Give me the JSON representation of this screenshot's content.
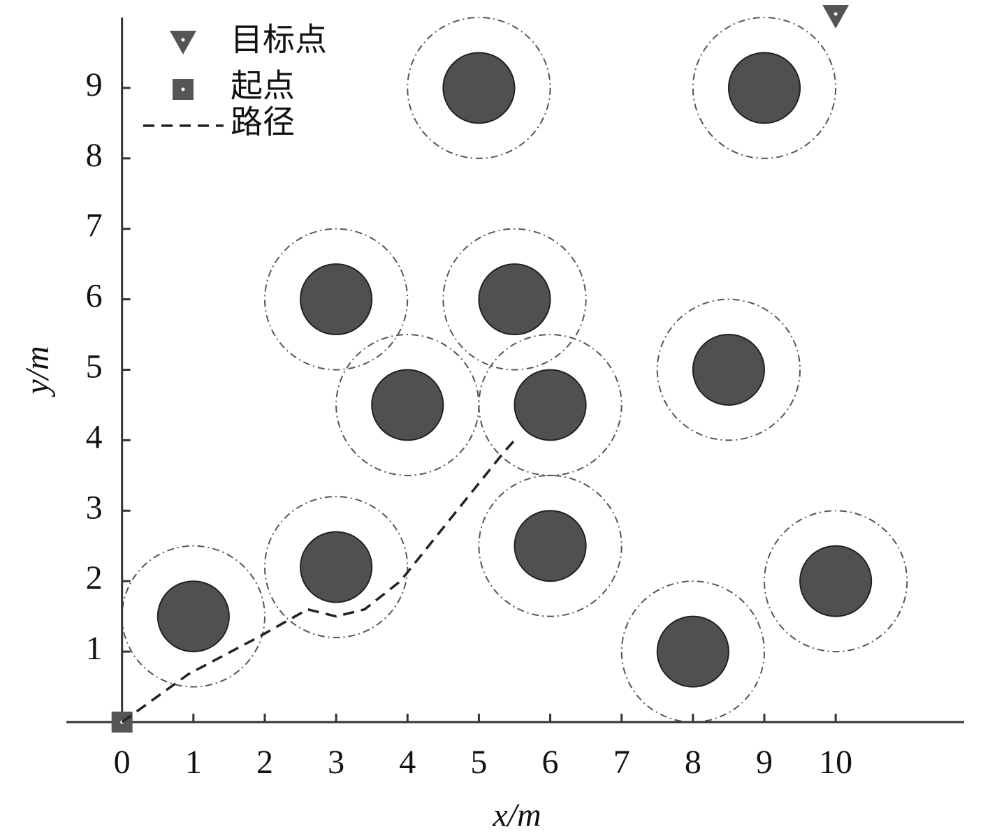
{
  "chart_data": {
    "type": "obstacle-map",
    "xlabel": "x/m",
    "ylabel": "y/m",
    "xlim": [
      -0.78,
      11.8
    ],
    "ylim": [
      0,
      10
    ],
    "xticks": [
      0,
      1,
      2,
      3,
      4,
      5,
      6,
      7,
      8,
      9,
      10
    ],
    "yticks": [
      1,
      2,
      3,
      4,
      5,
      6,
      7,
      8,
      9
    ],
    "obstacles": {
      "x": [
        1,
        3,
        3,
        4,
        5,
        5.5,
        6,
        6,
        8.5,
        8,
        10,
        9
      ],
      "y": [
        1.5,
        2.2,
        6,
        4.5,
        9,
        6,
        4.5,
        2.5,
        5,
        1,
        2,
        9
      ],
      "inner_radius": 0.5,
      "outer_radius": 1,
      "color": "#505050"
    },
    "series": [
      {
        "name": "目标点",
        "marker": "triangle",
        "color": "#555555",
        "x": [
          10
        ],
        "y": [
          10
        ]
      },
      {
        "name": "起点",
        "marker": "square",
        "color": "#555555",
        "x": [
          0
        ],
        "y": [
          0
        ]
      },
      {
        "name": "路径",
        "marker": "dashed-line",
        "color": "#222222",
        "x": [
          0,
          0.93,
          1.9,
          2.6,
          3,
          3.4,
          3.9,
          5.35,
          5.5
        ],
        "y": [
          0,
          0.68,
          1.2,
          1.6,
          1.5,
          1.6,
          2.0,
          3.83,
          4.0
        ]
      }
    ]
  }
}
